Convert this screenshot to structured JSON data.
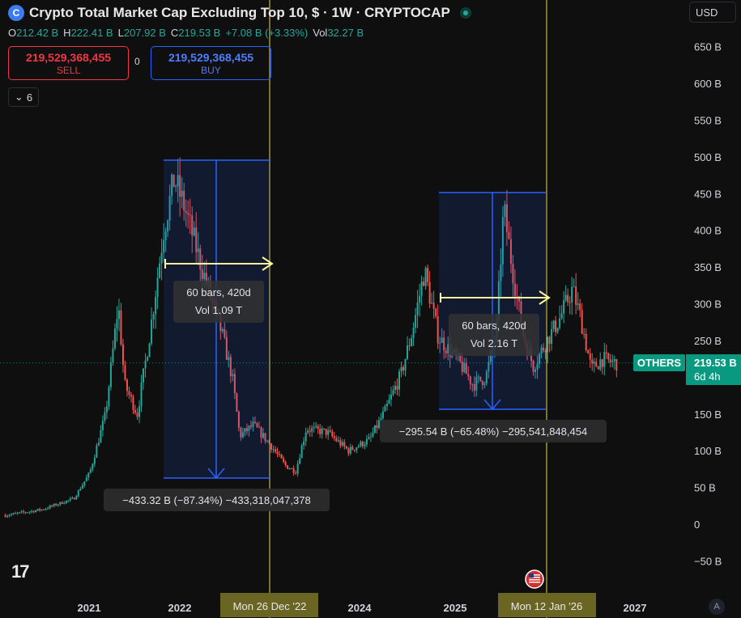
{
  "header": {
    "logo_icon": "cryptocap-logo-icon",
    "title": "Crypto Total Market Cap Excluding Top 10, $ · 1W · CRYPTOCAP",
    "market_status_icon": "live-dot-icon"
  },
  "ohlc": {
    "open_label": "O",
    "open": "212.42 B",
    "high_label": "H",
    "high": "222.41 B",
    "low_label": "L",
    "low": "207.92 B",
    "close_label": "C",
    "close": "219.53 B",
    "change": "+7.08 B (+3.33%)",
    "vol_label": "Vol",
    "vol": "32.27 B"
  },
  "trade": {
    "sell_price": "219,529,368,455",
    "sell_label": "SELL",
    "spread": "0",
    "buy_price": "219,529,368,455",
    "buy_label": "BUY"
  },
  "indicators_toggle": {
    "icon": "chevron-down-icon",
    "count": "6"
  },
  "currency": "USD",
  "price_axis": {
    "labels": [
      "650 B",
      "600 B",
      "550 B",
      "500 B",
      "450 B",
      "400 B",
      "350 B",
      "300 B",
      "250 B",
      "200 B",
      "150 B",
      "100 B",
      "50 B",
      "0",
      "−50 B"
    ],
    "symbol_tag": "OTHERS",
    "current_price": "219.53 B",
    "countdown": "6d 4h"
  },
  "time_axis": {
    "labels": [
      "2021",
      "2022",
      "2024",
      "2025",
      "2027"
    ],
    "crosshair_labels": [
      "Mon 26 Dec '22",
      "Mon 12 Jan '26"
    ]
  },
  "measures": [
    {
      "bars": "60 bars, 420d",
      "vol": "Vol 1.09 T",
      "change": "−433.32 B (−87.34%) −433,318,047,378"
    },
    {
      "bars": "60 bars, 420d",
      "vol": "Vol 2.16 T",
      "change": "−295.54 B (−65.48%) −295,541,848,454"
    }
  ],
  "tv_logo": "17",
  "auto_button": "A",
  "event_icon": "us-flag-icon",
  "colors": {
    "up": "#26a69a",
    "down": "#ef5350",
    "measure": "#2962ff",
    "crosshair": "#c8b84a",
    "arrow": "#fff59d"
  },
  "chart_data": {
    "type": "candlestick",
    "title": "Crypto Total Market Cap Excluding Top 10, $ · 1W · CRYPTOCAP",
    "ylim": [
      -50,
      650
    ],
    "y_unit": "B",
    "x_ticks": [
      "2021",
      "2022",
      "2024",
      "2025",
      "2027"
    ],
    "trend": [
      [
        2020.25,
        12
      ],
      [
        2020.6,
        20
      ],
      [
        2020.9,
        35
      ],
      [
        2021.05,
        70
      ],
      [
        2021.2,
        150
      ],
      [
        2021.32,
        300
      ],
      [
        2021.38,
        190
      ],
      [
        2021.5,
        150
      ],
      [
        2021.62,
        260
      ],
      [
        2021.75,
        400
      ],
      [
        2021.85,
        470
      ],
      [
        2021.95,
        430
      ],
      [
        2022.05,
        380
      ],
      [
        2022.15,
        330
      ],
      [
        2022.3,
        260
      ],
      [
        2022.4,
        200
      ],
      [
        2022.47,
        120
      ],
      [
        2022.6,
        135
      ],
      [
        2022.75,
        110
      ],
      [
        2022.9,
        80
      ],
      [
        2023.0,
        72
      ],
      [
        2023.1,
        130
      ],
      [
        2023.3,
        125
      ],
      [
        2023.5,
        100
      ],
      [
        2023.7,
        115
      ],
      [
        2023.85,
        155
      ],
      [
        2024.0,
        205
      ],
      [
        2024.1,
        260
      ],
      [
        2024.22,
        345
      ],
      [
        2024.35,
        255
      ],
      [
        2024.55,
        220
      ],
      [
        2024.68,
        190
      ],
      [
        2024.8,
        200
      ],
      [
        2024.9,
        260
      ],
      [
        2024.97,
        430
      ],
      [
        2025.05,
        350
      ],
      [
        2025.15,
        260
      ],
      [
        2025.25,
        215
      ],
      [
        2025.38,
        250
      ],
      [
        2025.5,
        280
      ],
      [
        2025.62,
        320
      ],
      [
        2025.7,
        280
      ],
      [
        2025.8,
        210
      ],
      [
        2025.9,
        225
      ],
      [
        2026.0,
        220
      ],
      [
        2026.04,
        219.53
      ]
    ],
    "current_close": 219.53
  }
}
